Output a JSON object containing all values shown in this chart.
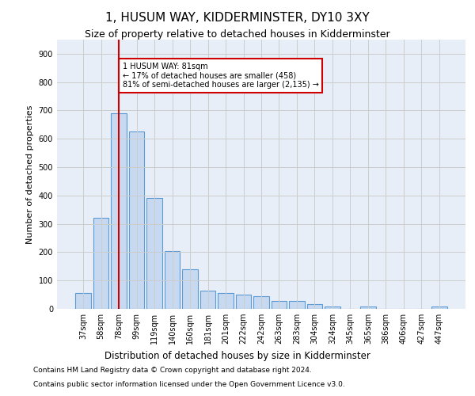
{
  "title": "1, HUSUM WAY, KIDDERMINSTER, DY10 3XY",
  "subtitle": "Size of property relative to detached houses in Kidderminster",
  "xlabel": "Distribution of detached houses by size in Kidderminster",
  "ylabel": "Number of detached properties",
  "footnote1": "Contains HM Land Registry data © Crown copyright and database right 2024.",
  "footnote2": "Contains public sector information licensed under the Open Government Licence v3.0.",
  "categories": [
    "37sqm",
    "58sqm",
    "78sqm",
    "99sqm",
    "119sqm",
    "140sqm",
    "160sqm",
    "181sqm",
    "201sqm",
    "222sqm",
    "242sqm",
    "263sqm",
    "283sqm",
    "304sqm",
    "324sqm",
    "345sqm",
    "365sqm",
    "386sqm",
    "406sqm",
    "427sqm",
    "447sqm"
  ],
  "values": [
    55,
    320,
    690,
    625,
    390,
    205,
    140,
    65,
    55,
    50,
    45,
    28,
    27,
    18,
    8,
    1,
    8,
    1,
    1,
    1,
    8
  ],
  "bar_color": "#c7d9f0",
  "bar_edge_color": "#5b9bd5",
  "vline_x": 2,
  "vline_color": "#cc0000",
  "annotation_text": "1 HUSUM WAY: 81sqm\n← 17% of detached houses are smaller (458)\n81% of semi-detached houses are larger (2,135) →",
  "annotation_box_color": "#ffffff",
  "annotation_box_edge": "#cc0000",
  "ylim": [
    0,
    950
  ],
  "yticks": [
    0,
    100,
    200,
    300,
    400,
    500,
    600,
    700,
    800,
    900
  ],
  "grid_color": "#cccccc",
  "bg_color": "#e8eef7",
  "title_fontsize": 11,
  "subtitle_fontsize": 9,
  "axis_label_fontsize": 8,
  "tick_fontsize": 7,
  "footnote_fontsize": 6.5
}
